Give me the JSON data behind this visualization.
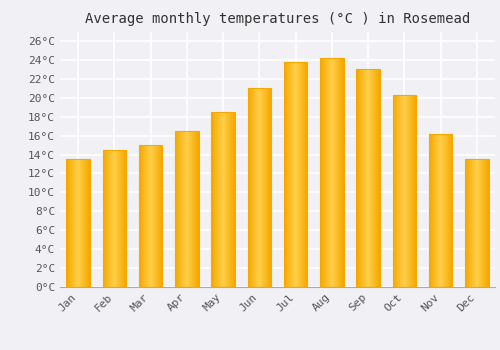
{
  "title": "Average monthly temperatures (°C ) in Rosemead",
  "months": [
    "Jan",
    "Feb",
    "Mar",
    "Apr",
    "May",
    "Jun",
    "Jul",
    "Aug",
    "Sep",
    "Oct",
    "Nov",
    "Dec"
  ],
  "values": [
    13.5,
    14.5,
    15.0,
    16.5,
    18.5,
    21.0,
    23.8,
    24.2,
    23.0,
    20.3,
    16.2,
    13.5
  ],
  "bar_color_center": "#FFD04A",
  "bar_color_edge": "#F5A800",
  "background_color": "#F0F0F5",
  "plot_bg_color": "#F0F0F5",
  "grid_color": "#FFFFFF",
  "yticks": [
    0,
    2,
    4,
    6,
    8,
    10,
    12,
    14,
    16,
    18,
    20,
    22,
    24,
    26
  ],
  "ylim": [
    0,
    27
  ],
  "title_fontsize": 10,
  "tick_fontsize": 8,
  "font_family": "monospace"
}
